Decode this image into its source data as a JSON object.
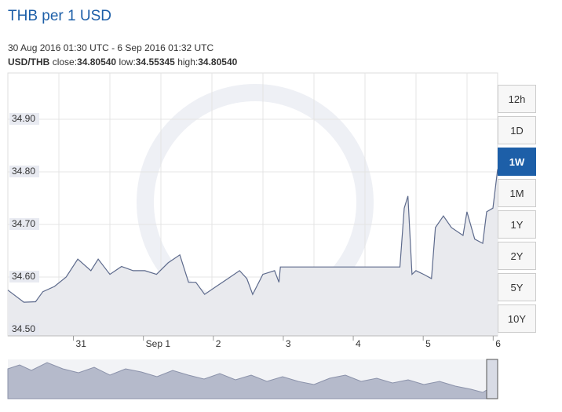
{
  "header": {
    "title": "THB per 1 USD",
    "range": "30 Aug 2016 01:30 UTC - 6 Sep 2016 01:32 UTC",
    "pair": "USD/THB",
    "stats": [
      {
        "label": "close:",
        "value": "34.80540"
      },
      {
        "label": "low:",
        "value": "34.55345"
      },
      {
        "label": "high:",
        "value": "34.80540"
      }
    ]
  },
  "buttons": [
    "12h",
    "1D",
    "1W",
    "1M",
    "1Y",
    "2Y",
    "5Y",
    "10Y"
  ],
  "active_button": 2,
  "chart_data": {
    "type": "line",
    "color": "#5d6a8c",
    "fill": "#e9eaee",
    "xlim": [
      "2016-08-30T01:30:00Z",
      "2016-09-06T01:32:00Z"
    ],
    "xticks": [
      {
        "value": "2016-08-31T00:00:00Z",
        "label": "31"
      },
      {
        "value": "2016-09-01T00:00:00Z",
        "label": "Sep 1"
      },
      {
        "value": "2016-09-02T00:00:00Z",
        "label": "2"
      },
      {
        "value": "2016-09-03T00:00:00Z",
        "label": "3"
      },
      {
        "value": "2016-09-04T00:00:00Z",
        "label": "4"
      },
      {
        "value": "2016-09-05T00:00:00Z",
        "label": "5"
      },
      {
        "value": "2016-09-06T00:00:00Z",
        "label": "6"
      }
    ],
    "ylim": [
      34.488,
      34.988
    ],
    "yticks": [
      {
        "value": 34.5,
        "label": "34.50"
      },
      {
        "value": 34.6,
        "label": "34.60"
      },
      {
        "value": 34.7,
        "label": "34.70"
      },
      {
        "value": 34.8,
        "label": "34.80"
      },
      {
        "value": 34.9,
        "label": "34.90"
      }
    ],
    "grid": true,
    "x": [
      "2016-08-30T01:30:00Z",
      "2016-08-30T07:00:00Z",
      "2016-08-30T11:00:00Z",
      "2016-08-30T13:30:00Z",
      "2016-08-30T17:30:00Z",
      "2016-08-30T21:30:00Z",
      "2016-08-31T01:30:00Z",
      "2016-08-31T06:00:00Z",
      "2016-08-31T08:30:00Z",
      "2016-08-31T12:30:00Z",
      "2016-08-31T16:30:00Z",
      "2016-08-31T20:30:00Z",
      "2016-09-01T00:30:00Z",
      "2016-09-01T04:30:00Z",
      "2016-09-01T08:30:00Z",
      "2016-09-01T12:30:00Z",
      "2016-09-01T15:30:00Z",
      "2016-09-01T18:00:00Z",
      "2016-09-01T21:00:00Z",
      "2016-09-02T01:00:00Z",
      "2016-09-02T05:00:00Z",
      "2016-09-02T09:00:00Z",
      "2016-09-02T11:30:00Z",
      "2016-09-02T13:30:00Z",
      "2016-09-02T17:00:00Z",
      "2016-09-02T21:00:00Z",
      "2016-09-02T22:30:00Z",
      "2016-09-02T23:00:00Z",
      "2016-09-04T16:00:00Z",
      "2016-09-04T17:30:00Z",
      "2016-09-04T18:45:00Z",
      "2016-09-04T20:10:00Z",
      "2016-09-04T21:30:00Z",
      "2016-09-05T00:10:00Z",
      "2016-09-05T02:50:00Z",
      "2016-09-05T04:10:00Z",
      "2016-09-05T06:55:00Z",
      "2016-09-05T09:40:00Z",
      "2016-09-05T13:40:00Z",
      "2016-09-05T15:00:00Z",
      "2016-09-05T17:40:00Z",
      "2016-09-05T20:25:00Z",
      "2016-09-05T21:45:00Z",
      "2016-09-05T23:55:00Z",
      "2016-09-06T01:32:00Z"
    ],
    "values": [
      34.575,
      34.552,
      34.553,
      34.572,
      34.582,
      34.6,
      34.634,
      34.612,
      34.634,
      34.605,
      34.62,
      34.612,
      34.612,
      34.605,
      34.627,
      34.642,
      34.59,
      34.59,
      34.567,
      34.582,
      34.597,
      34.612,
      34.597,
      34.567,
      34.605,
      34.612,
      34.59,
      34.619,
      34.619,
      34.731,
      34.754,
      34.605,
      34.612,
      34.605,
      34.597,
      34.694,
      34.716,
      34.694,
      34.679,
      34.724,
      34.672,
      34.664,
      34.724,
      34.731,
      34.805
    ]
  }
}
